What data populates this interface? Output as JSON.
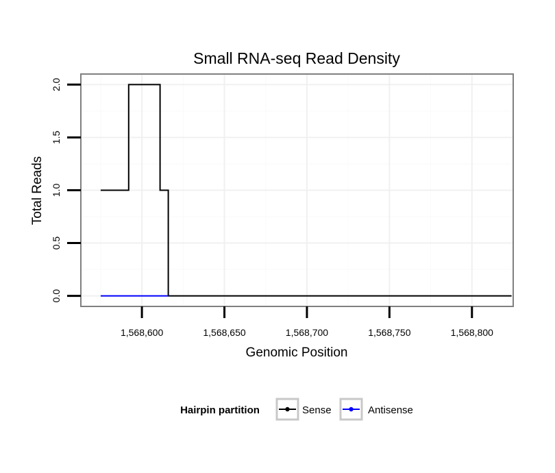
{
  "chart_data": {
    "type": "line",
    "title": "Small RNA-seq Read Density",
    "xlabel": "Genomic Position",
    "ylabel": "Total Reads",
    "xlim": [
      1568563,
      1568825
    ],
    "ylim": [
      -0.1,
      2.1
    ],
    "x_ticks": [
      {
        "value": 1568600,
        "label": "1,568,600"
      },
      {
        "value": 1568650,
        "label": "1,568,650"
      },
      {
        "value": 1568700,
        "label": "1,568,700"
      },
      {
        "value": 1568750,
        "label": "1,568,750"
      },
      {
        "value": 1568800,
        "label": "1,568,800"
      }
    ],
    "y_ticks": [
      {
        "value": 0.0,
        "label": "0.0"
      },
      {
        "value": 0.5,
        "label": "0.5"
      },
      {
        "value": 1.0,
        "label": "1.0"
      },
      {
        "value": 1.5,
        "label": "1.5"
      },
      {
        "value": 2.0,
        "label": "2.0"
      }
    ],
    "grid": true,
    "legend": {
      "title": "Hairpin partition",
      "position": "bottom"
    },
    "series": [
      {
        "name": "Sense",
        "color": "#000000",
        "x": [
          1568575,
          1568592,
          1568592,
          1568611,
          1568611,
          1568616,
          1568616,
          1568824
        ],
        "y": [
          1,
          1,
          2,
          2,
          1,
          1,
          0,
          0
        ]
      },
      {
        "name": "Antisense",
        "color": "#0000ff",
        "x": [
          1568575,
          1568616
        ],
        "y": [
          0,
          0
        ]
      }
    ]
  }
}
